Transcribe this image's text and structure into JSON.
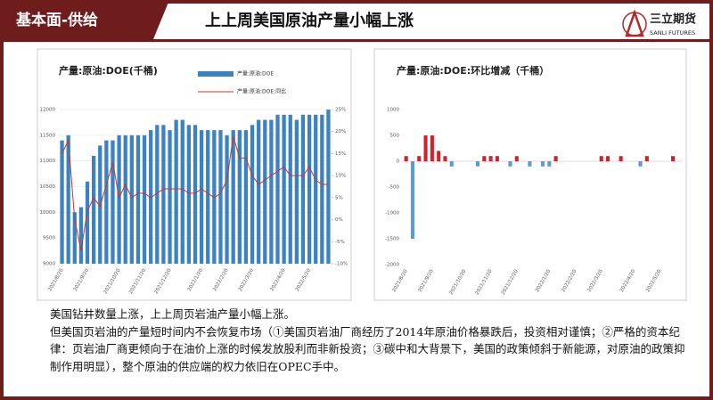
{
  "header": {
    "section": "基本面-供给",
    "title": "上上周美国原油产量小幅上涨",
    "logo": "三立期货",
    "logo_sub": "SANLI FUTURES"
  },
  "chart_data": [
    {
      "type": "combo",
      "title": "产量:原油:DOE(千桶)",
      "categories": [
        "2021/8/20",
        null,
        null,
        null,
        "2021/9/20",
        null,
        null,
        null,
        null,
        "2021/10/20",
        null,
        null,
        null,
        "2021/11/20",
        null,
        null,
        null,
        "2021/12/20",
        null,
        null,
        null,
        null,
        "2022/1/20",
        null,
        null,
        null,
        "2022/2/20",
        null,
        null,
        null,
        "2022/3/20",
        null,
        null,
        null,
        null,
        "2022/4/20",
        null,
        null,
        null,
        "2022/5/20",
        null,
        null,
        null
      ],
      "series": [
        {
          "name": "产量:原油:DOE",
          "type": "bar",
          "color": "#3b82c4",
          "values": [
            11400,
            11500,
            10000,
            10100,
            10600,
            11100,
            11300,
            11400,
            11400,
            11500,
            11500,
            11500,
            11500,
            11500,
            11600,
            11700,
            11700,
            11600,
            11800,
            11800,
            11700,
            11700,
            11600,
            11600,
            11600,
            11600,
            11500,
            11600,
            11600,
            11600,
            11700,
            11800,
            11800,
            11800,
            11900,
            11900,
            11900,
            11800,
            11900,
            11900,
            11900,
            11900,
            12000
          ]
        },
        {
          "name": "产量:原油:DOE:同比",
          "type": "line",
          "axis": "y2",
          "color": "#c0392b",
          "values": [
            15,
            18,
            0,
            -7,
            2,
            5,
            3,
            8,
            13,
            5,
            8,
            5,
            6,
            6,
            5,
            6,
            7,
            7,
            7,
            7,
            6,
            6,
            7,
            6,
            5,
            6,
            9,
            19,
            14,
            14,
            10,
            8,
            9,
            10,
            11,
            12,
            10,
            10,
            10,
            12,
            9,
            8,
            8
          ]
        }
      ],
      "ylim": [
        9000,
        12000
      ],
      "yticks": [
        9000,
        9500,
        10000,
        10500,
        11000,
        11500,
        12000
      ],
      "y2lim": [
        -10,
        25
      ],
      "y2ticks": [
        {
          "value": -10,
          "label": "-10%"
        },
        {
          "value": -5,
          "label": "-5%"
        },
        {
          "value": 0,
          "label": "0%"
        },
        {
          "value": 5,
          "label": "5%"
        },
        {
          "value": 10,
          "label": "10%"
        },
        {
          "value": 15,
          "label": "15%"
        },
        {
          "value": 20,
          "label": "20%"
        },
        {
          "value": 25,
          "label": "25%"
        }
      ],
      "grid": true,
      "legend": "top-right"
    },
    {
      "type": "bar",
      "title": "产量:原油:DOE:环比增减（千桶）",
      "categories": [
        "2021/8/20",
        null,
        null,
        null,
        "2021/9/20",
        null,
        null,
        null,
        null,
        "2021/10/20",
        null,
        null,
        null,
        "2021/11/20",
        null,
        null,
        null,
        "2021/12/20",
        null,
        null,
        null,
        null,
        "2022/1/20",
        null,
        null,
        null,
        "2022/2/20",
        null,
        null,
        null,
        "2022/3/20",
        null,
        null,
        null,
        null,
        "2022/4/20",
        null,
        null,
        null,
        "2022/5/20",
        null,
        null,
        null
      ],
      "values": [
        100,
        -1500,
        100,
        500,
        500,
        200,
        100,
        -100,
        0,
        0,
        0,
        -100,
        100,
        100,
        100,
        0,
        -100,
        100,
        0,
        -100,
        0,
        -100,
        -100,
        100,
        0,
        0,
        0,
        0,
        0,
        0,
        100,
        100,
        0,
        100,
        0,
        0,
        -100,
        100,
        0,
        0,
        0,
        100,
        0
      ],
      "positive_color": "#d0222b",
      "negative_color": "#5b9bd5",
      "ylim": [
        -2000,
        1000
      ],
      "yticks": [
        -2000,
        -1500,
        -1000,
        -500,
        0,
        500,
        1000
      ],
      "grid": false
    }
  ],
  "body": {
    "paragraphs": [
      "美国钻井数量上涨，上上周页岩油产量小幅上涨。",
      "但美国页岩油的产量短时间内不会恢复市场（①美国页岩油厂商经历了2014年原油价格暴跌后，投资相对谨慎；②严格的资本纪律：页岩油厂商更倾向于在油价上涨的时候发放股利而非新投资；③碳中和大背景下，美国的政策倾斜于新能源，对原油的政策抑制作用明显），整个原油的供应端的权力依旧在OPEC手中。"
    ]
  }
}
